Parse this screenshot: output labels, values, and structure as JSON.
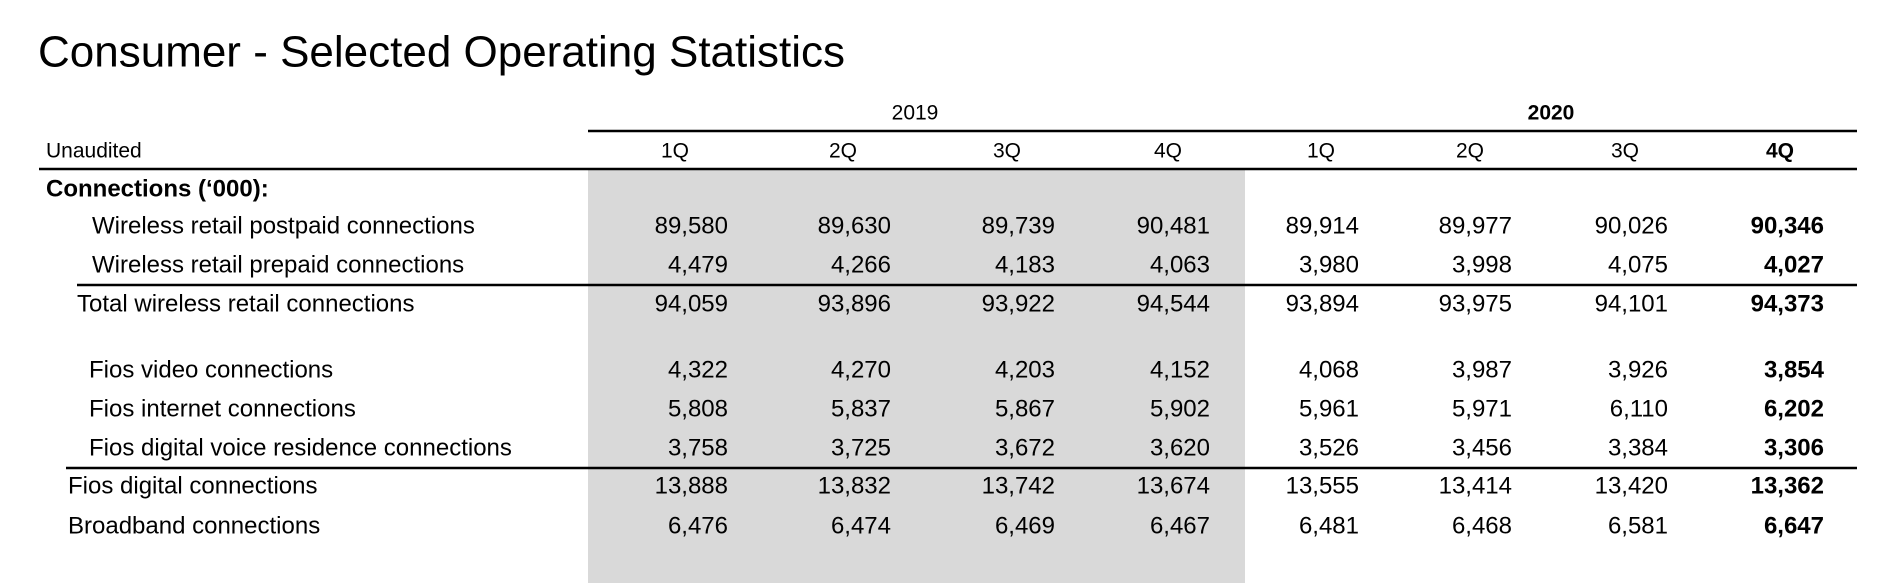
{
  "header": {
    "title": "Consumer - Selected Operating Statistics"
  },
  "table": {
    "years": [
      "2019",
      "2020"
    ],
    "stub_header": "Unaudited",
    "columns": [
      "1Q",
      "2Q",
      "3Q",
      "4Q",
      "1Q",
      "2Q",
      "3Q",
      "4Q"
    ],
    "section": "Connections (‘000):",
    "rows": [
      {
        "label": "Wireless retail postpaid connections",
        "values": [
          "89,580",
          "89,630",
          "89,739",
          "90,481",
          "89,914",
          "89,977",
          "90,026",
          "90,346"
        ]
      },
      {
        "label": "Wireless retail prepaid connections",
        "values": [
          "4,479",
          "4,266",
          "4,183",
          "4,063",
          "3,980",
          "3,998",
          "4,075",
          "4,027"
        ]
      },
      {
        "label": "Total wireless retail connections",
        "values": [
          "94,059",
          "93,896",
          "93,922",
          "94,544",
          "93,894",
          "93,975",
          "94,101",
          "94,373"
        ]
      },
      {
        "label": "Fios video connections",
        "values": [
          "4,322",
          "4,270",
          "4,203",
          "4,152",
          "4,068",
          "3,987",
          "3,926",
          "3,854"
        ]
      },
      {
        "label": "Fios internet connections",
        "values": [
          "5,808",
          "5,837",
          "5,867",
          "5,902",
          "5,961",
          "5,971",
          "6,110",
          "6,202"
        ]
      },
      {
        "label": "Fios digital voice residence connections",
        "values": [
          "3,758",
          "3,725",
          "3,672",
          "3,620",
          "3,526",
          "3,456",
          "3,384",
          "3,306"
        ]
      },
      {
        "label": "Fios digital connections",
        "values": [
          "13,888",
          "13,832",
          "13,742",
          "13,674",
          "13,555",
          "13,414",
          "13,420",
          "13,362"
        ]
      },
      {
        "label": "Broadband connections",
        "values": [
          "6,476",
          "6,474",
          "6,469",
          "6,467",
          "6,481",
          "6,468",
          "6,581",
          "6,647"
        ]
      }
    ]
  }
}
